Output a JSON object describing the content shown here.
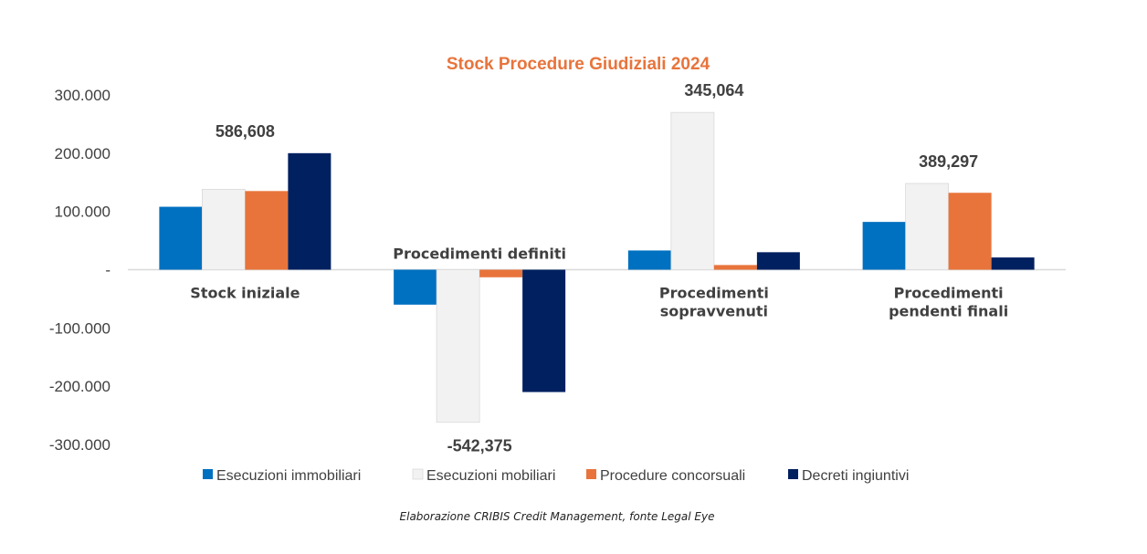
{
  "chart_data": {
    "type": "bar",
    "title": "Stock Procedure Giudiziali 2024",
    "title_color": "#E8743B",
    "ylim": [
      -300000,
      300000
    ],
    "y_ticks": [
      {
        "value": 300000,
        "label": "300.000"
      },
      {
        "value": 200000,
        "label": "200.000"
      },
      {
        "value": 100000,
        "label": "100.000"
      },
      {
        "value": 0,
        "label": "-"
      },
      {
        "value": -100000,
        "label": "-100.000"
      },
      {
        "value": -200000,
        "label": "-200.000"
      },
      {
        "value": -300000,
        "label": "-300.000"
      }
    ],
    "grid": false,
    "legend_position": "bottom",
    "categories": [
      {
        "lines": [
          "Stock iniziale"
        ],
        "label_side": "below"
      },
      {
        "lines": [
          "Procedimenti definiti"
        ],
        "label_side": "above"
      },
      {
        "lines": [
          "Procedimenti",
          "sopravvenuti"
        ],
        "label_side": "below"
      },
      {
        "lines": [
          "Procedimenti",
          "pendenti finali"
        ],
        "label_side": "below"
      }
    ],
    "totals": [
      "586,608",
      "-542,375",
      "345,064",
      "389,297"
    ],
    "series": [
      {
        "name": "Esecuzioni immobiliari",
        "color": "#0070C0",
        "values": [
          108000,
          -60000,
          33000,
          82000
        ]
      },
      {
        "name": "Esecuzioni mobiliari",
        "color": "#F2F2F2",
        "values": [
          138000,
          -262000,
          270000,
          148000
        ]
      },
      {
        "name": "Procedure concorsuali",
        "color": "#E8743B",
        "values": [
          135000,
          -13000,
          8000,
          132000
        ]
      },
      {
        "name": "Decreti ingiuntivi",
        "color": "#002060",
        "values": [
          200000,
          -210000,
          30000,
          21000
        ]
      }
    ]
  },
  "source_note": "Elaborazione CRIBIS Credit Management, fonte Legal Eye"
}
